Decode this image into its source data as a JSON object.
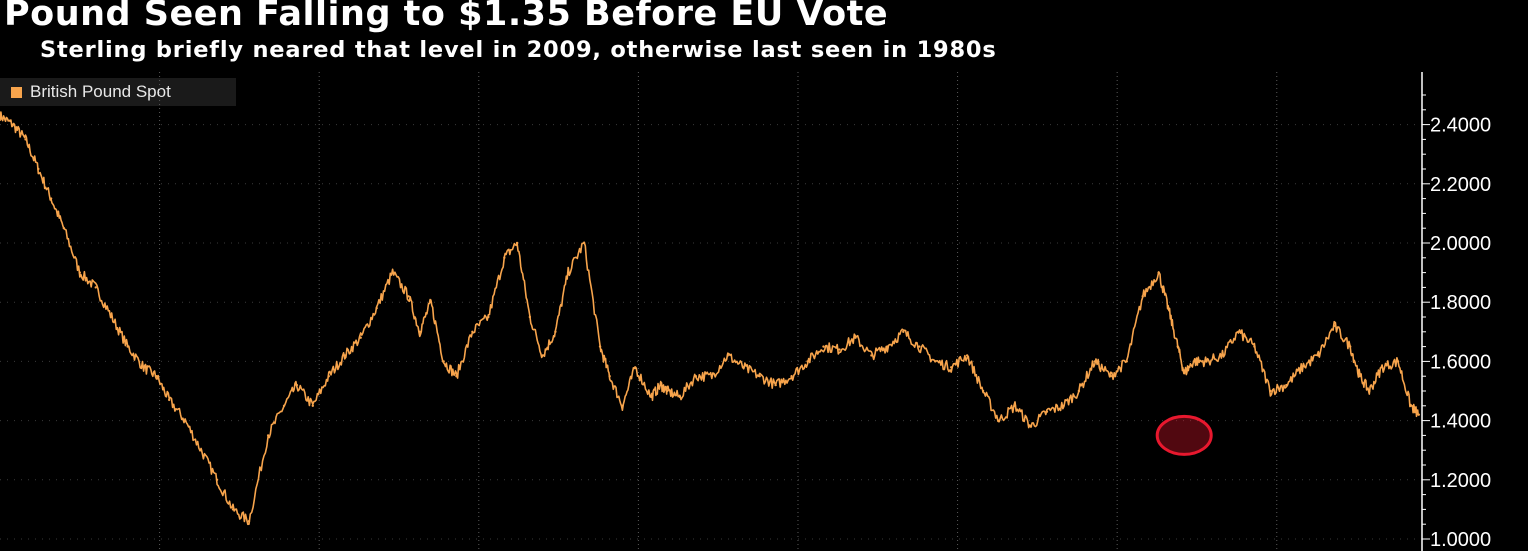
{
  "chart_data": {
    "type": "line",
    "title": "Pound Seen Falling to $1.35 Before EU Vote",
    "subtitle": "Sterling briefly neared that level in 2009, otherwise last seen in 1980s",
    "xlabel": "",
    "ylabel": "",
    "ylim": [
      1.0,
      2.5
    ],
    "xlim": [
      1972,
      2016.55
    ],
    "yticks": [
      1.0,
      1.2,
      1.4,
      1.6,
      1.8,
      2.0,
      2.2,
      2.4
    ],
    "ytick_labels": [
      "1.0000",
      "1.2000",
      "1.4000",
      "1.6000",
      "1.8000",
      "2.0000",
      "2.2000",
      "2.4000"
    ],
    "xgrid": [
      1977,
      1982,
      1987,
      1992,
      1997,
      2002,
      2007,
      2012,
      2017
    ],
    "grid": "vertical dotted",
    "legend_position": "top-left",
    "series": [
      {
        "name": "British Pound Spot",
        "color": "#f7a44c",
        "x": [
          1972.0,
          1972.4,
          1972.8,
          1973.2,
          1973.6,
          1974.0,
          1974.5,
          1975.0,
          1975.5,
          1976.0,
          1976.5,
          1976.9,
          1977.3,
          1977.8,
          1978.3,
          1978.8,
          1979.3,
          1979.8,
          1980.4,
          1980.9,
          1981.3,
          1981.8,
          1982.3,
          1982.8,
          1983.3,
          1983.8,
          1984.3,
          1984.8,
          1985.15,
          1985.5,
          1985.9,
          1986.3,
          1986.8,
          1987.3,
          1987.8,
          1988.2,
          1988.6,
          1989.0,
          1989.4,
          1989.8,
          1990.3,
          1990.8,
          1991.1,
          1991.5,
          1991.9,
          1992.4,
          1992.7,
          1992.9,
          1993.3,
          1993.8,
          1994.3,
          1994.8,
          1995.3,
          1995.8,
          1996.3,
          1996.8,
          1997.3,
          1997.8,
          1998.3,
          1998.8,
          1999.3,
          1999.8,
          2000.3,
          2000.8,
          2001.3,
          2001.8,
          2002.3,
          2002.8,
          2003.3,
          2003.8,
          2004.3,
          2004.8,
          2005.3,
          2005.8,
          2006.3,
          2006.8,
          2007.3,
          2007.8,
          2008.3,
          2008.6,
          2008.9,
          2009.1,
          2009.4,
          2009.8,
          2010.3,
          2010.8,
          2011.3,
          2011.8,
          2012.3,
          2012.8,
          2013.3,
          2013.8,
          2014.3,
          2014.6,
          2014.9,
          2015.3,
          2015.8,
          2016.2,
          2016.45
        ],
        "values": [
          2.43,
          2.4,
          2.35,
          2.25,
          2.15,
          2.05,
          1.9,
          1.85,
          1.75,
          1.65,
          1.58,
          1.55,
          1.47,
          1.4,
          1.3,
          1.2,
          1.1,
          1.06,
          1.35,
          1.45,
          1.52,
          1.45,
          1.55,
          1.62,
          1.68,
          1.78,
          1.9,
          1.82,
          1.7,
          1.8,
          1.6,
          1.55,
          1.7,
          1.75,
          1.95,
          2.0,
          1.75,
          1.62,
          1.7,
          1.9,
          2.0,
          1.65,
          1.55,
          1.45,
          1.58,
          1.48,
          1.52,
          1.5,
          1.48,
          1.55,
          1.55,
          1.62,
          1.58,
          1.55,
          1.52,
          1.55,
          1.6,
          1.65,
          1.64,
          1.68,
          1.62,
          1.65,
          1.7,
          1.65,
          1.6,
          1.58,
          1.62,
          1.5,
          1.4,
          1.45,
          1.38,
          1.43,
          1.45,
          1.5,
          1.6,
          1.55,
          1.6,
          1.82,
          1.9,
          1.78,
          1.65,
          1.56,
          1.6,
          1.6,
          1.62,
          1.7,
          1.65,
          1.5,
          1.52,
          1.58,
          1.62,
          1.72,
          1.65,
          1.55,
          1.5,
          1.58,
          1.6,
          1.45,
          1.42
        ]
      }
    ],
    "annotations": [
      {
        "type": "circle",
        "x": 2009.1,
        "y": 1.35,
        "color": "#e8182e"
      }
    ]
  }
}
